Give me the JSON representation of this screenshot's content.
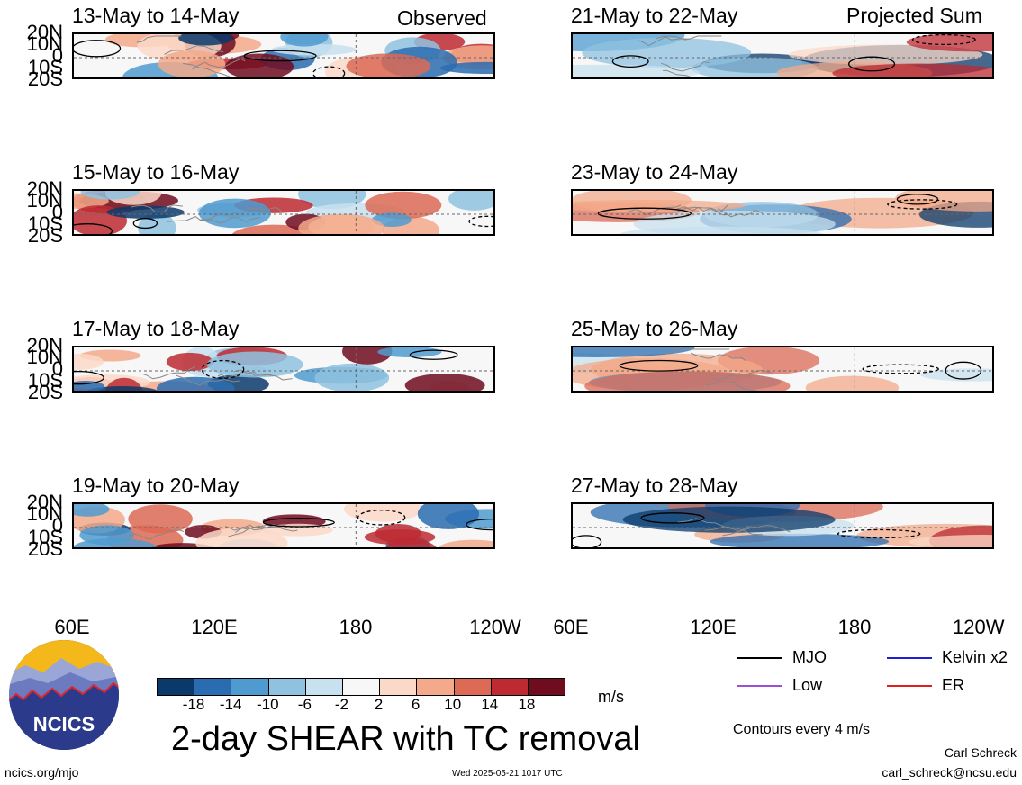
{
  "observed_label": "Observed",
  "projected_label": "Projected Sum",
  "chart_data": [
    {
      "type": "heatmap",
      "title": "13-May to 14-May",
      "column": "Observed"
    },
    {
      "type": "heatmap",
      "title": "15-May to 16-May",
      "column": "Observed"
    },
    {
      "type": "heatmap",
      "title": "17-May to 18-May",
      "column": "Observed"
    },
    {
      "type": "heatmap",
      "title": "19-May to 20-May",
      "column": "Observed"
    },
    {
      "type": "heatmap",
      "title": "21-May to 22-May",
      "column": "Projected Sum"
    },
    {
      "type": "heatmap",
      "title": "23-May to 24-May",
      "column": "Projected Sum"
    },
    {
      "type": "heatmap",
      "title": "25-May to 26-May",
      "column": "Projected Sum"
    },
    {
      "type": "heatmap",
      "title": "27-May to 28-May",
      "column": "Projected Sum"
    }
  ],
  "y_ticks": [
    "20N",
    "10N",
    "0",
    "10S",
    "20S"
  ],
  "x_ticks": [
    "60E",
    "120E",
    "180",
    "120W"
  ],
  "colorbar": {
    "colors": [
      "#0a3a6b",
      "#2a6cb0",
      "#4f9bd0",
      "#8fc2e0",
      "#c8e1ef",
      "#f7f7f7",
      "#fbd9c8",
      "#f3a98a",
      "#dc6a55",
      "#bd2a31",
      "#6f0c1e"
    ],
    "ticks": [
      "-18",
      "-14",
      "-10",
      "-6",
      "-2",
      "2",
      "6",
      "10",
      "14",
      "18"
    ],
    "unit": "m/s"
  },
  "main_title": "2-day SHEAR with TC removal",
  "legend": [
    {
      "label": "MJO",
      "color": "#000000"
    },
    {
      "label": "Kelvin x2",
      "color": "#1f1fd6"
    },
    {
      "label": "Low",
      "color": "#9b4fd6"
    },
    {
      "label": "ER",
      "color": "#e02020"
    }
  ],
  "contour_note": "Contours every 4 m/s",
  "author": "Carl Schreck",
  "email": "carl_schreck@ncsu.edu",
  "site": "ncics.org/mjo",
  "timestamp": "Wed 2025-05-21 1017 UTC",
  "logo_text": "NCICS"
}
